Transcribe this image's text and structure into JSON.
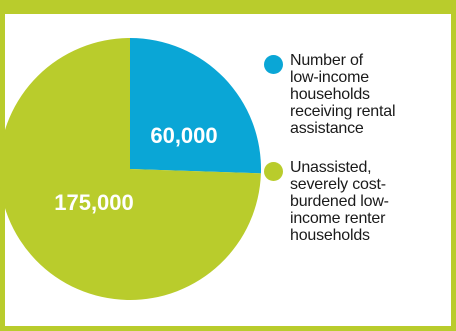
{
  "chart_data": {
    "type": "pie",
    "slices": [
      {
        "label": "60,000",
        "value": 60000,
        "color": "#0aa6d6",
        "legend_lines": [
          "Number of",
          "low-income",
          "households",
          "receiving rental",
          "assistance"
        ]
      },
      {
        "label": "175,000",
        "value": 175000,
        "color": "#b9cc2c",
        "legend_lines": [
          "Unassisted,",
          "severely cost-",
          "burdened low-",
          "income renter",
          "households"
        ]
      }
    ],
    "start_angle_deg": 0,
    "direction": "clockwise",
    "legend_position": "right"
  }
}
